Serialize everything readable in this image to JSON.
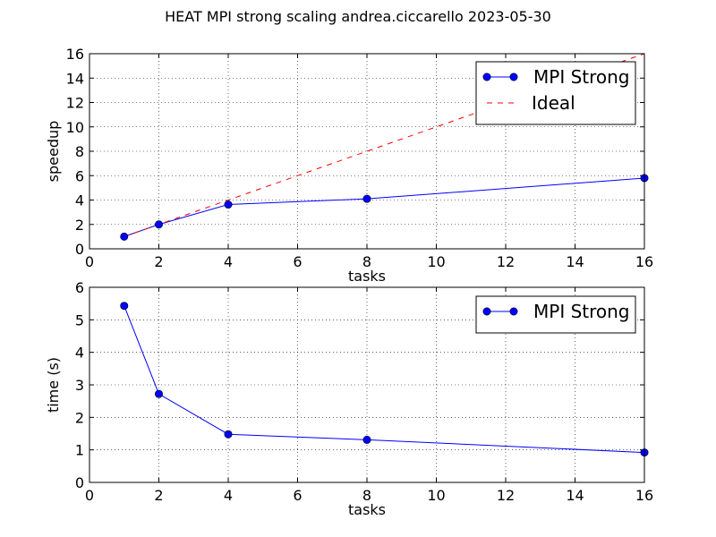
{
  "chart_data": [
    {
      "type": "line",
      "title": "HEAT  MPI  strong scaling andrea.ciccarello 2023-05-30",
      "xlabel": "tasks",
      "ylabel": "speedup",
      "xlim": [
        0,
        16
      ],
      "ylim": [
        0,
        16
      ],
      "xticks": [
        0,
        2,
        4,
        6,
        8,
        10,
        12,
        14,
        16
      ],
      "yticks": [
        0,
        2,
        4,
        6,
        8,
        10,
        12,
        14,
        16
      ],
      "grid": true,
      "legend_position": "top-right",
      "series": [
        {
          "name": "MPI Strong",
          "style": "solid-markers",
          "color": "#0000ff",
          "x": [
            1,
            2,
            4,
            8,
            16
          ],
          "y": [
            1.0,
            2.0,
            3.63,
            4.1,
            5.8
          ]
        },
        {
          "name": "Ideal",
          "style": "dashed",
          "color": "#ff0000",
          "x": [
            1,
            16
          ],
          "y": [
            1,
            16
          ]
        }
      ]
    },
    {
      "type": "line",
      "xlabel": "tasks",
      "ylabel": "time (s)",
      "xlim": [
        0,
        16
      ],
      "ylim": [
        0,
        6
      ],
      "xticks": [
        0,
        2,
        4,
        6,
        8,
        10,
        12,
        14,
        16
      ],
      "yticks": [
        0,
        1,
        2,
        3,
        4,
        5,
        6
      ],
      "grid": true,
      "legend_position": "top-right",
      "series": [
        {
          "name": "MPI Strong",
          "style": "solid-markers",
          "color": "#0000ff",
          "x": [
            1,
            2,
            4,
            8,
            16
          ],
          "y": [
            5.43,
            2.72,
            1.48,
            1.31,
            0.92
          ]
        }
      ]
    }
  ]
}
